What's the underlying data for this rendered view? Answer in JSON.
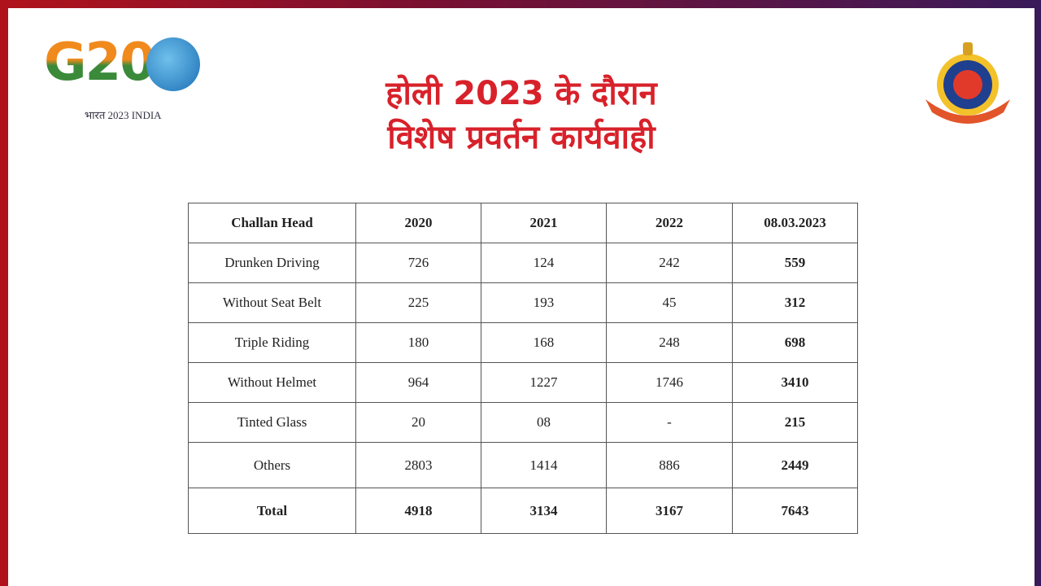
{
  "logo_left": {
    "mark": "G20",
    "caption": "भारत 2023 INDIA"
  },
  "header": {
    "title_lines": [
      "होली 2023 के दौरान",
      "विशेष प्रवर्तन कार्यवाही"
    ]
  },
  "table": {
    "columns": [
      "Challan Head",
      "2020",
      "2021",
      "2022",
      "08.03.2023"
    ],
    "rows": [
      [
        "Drunken Driving",
        "726",
        "124",
        "242",
        "559"
      ],
      [
        "Without Seat Belt",
        "225",
        "193",
        "45",
        "312"
      ],
      [
        "Triple Riding",
        "180",
        "168",
        "248",
        "698"
      ],
      [
        "Without Helmet",
        "964",
        "1227",
        "1746",
        "3410"
      ],
      [
        "Tinted Glass",
        "20",
        "08",
        "-",
        "215"
      ],
      [
        "Others",
        "2803",
        "1414",
        "886",
        "2449"
      ]
    ],
    "total": [
      "Total",
      "4918",
      "3134",
      "3167",
      "7643"
    ]
  }
}
